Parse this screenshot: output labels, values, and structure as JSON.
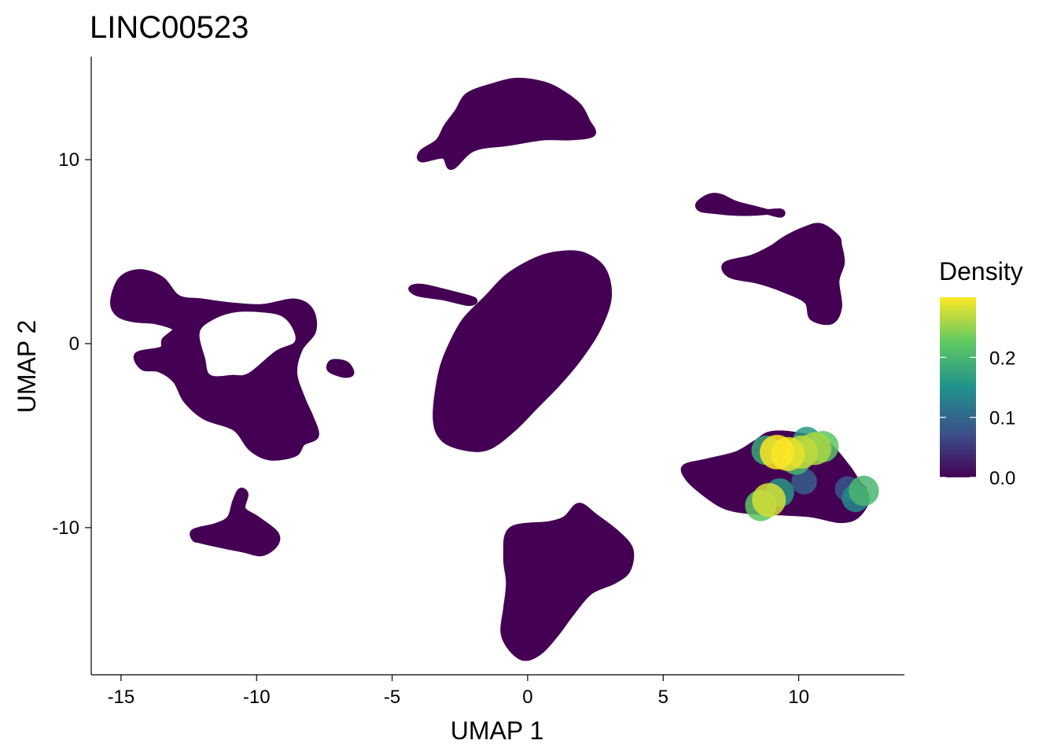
{
  "chart_data": {
    "type": "scatter",
    "title": "LINC00523",
    "xlabel": "UMAP 1",
    "ylabel": "UMAP 2",
    "xlim": [
      -16.1,
      13.9
    ],
    "ylim": [
      -18.0,
      15.6
    ],
    "x_ticks": [
      -15,
      -10,
      -5,
      0,
      5,
      10
    ],
    "x_tick_labels": [
      "-15",
      "-10",
      "-5",
      "0",
      "5",
      "10"
    ],
    "y_ticks": [
      -10,
      0,
      10
    ],
    "y_tick_labels": [
      "-10",
      "0",
      "10"
    ],
    "grid": false,
    "legend": {
      "title": "Density",
      "placement": "right",
      "color_scale": "viridis",
      "range": [
        0.0,
        0.3
      ],
      "ticks": [
        0.0,
        0.1,
        0.2
      ],
      "tick_labels": [
        "0.0",
        "0.1",
        "0.2"
      ],
      "colors": [
        "#440154",
        "#3b528b",
        "#21918c",
        "#5ec962",
        "#fde725"
      ]
    },
    "base_color": "#440154",
    "clusters": [
      {
        "shape": [
          [
            -3.9,
            10.4
          ],
          [
            -3.3,
            11.0
          ],
          [
            -3.0,
            11.8
          ],
          [
            -2.6,
            12.6
          ],
          [
            -2.2,
            13.5
          ],
          [
            -1.3,
            14.0
          ],
          [
            -0.4,
            14.3
          ],
          [
            0.6,
            14.1
          ],
          [
            1.3,
            13.6
          ],
          [
            1.9,
            12.9
          ],
          [
            2.2,
            12.1
          ],
          [
            2.4,
            11.4
          ],
          [
            1.6,
            11.2
          ],
          [
            0.6,
            11.2
          ],
          [
            -0.7,
            10.9
          ],
          [
            -2.0,
            10.6
          ],
          [
            -2.8,
            9.6
          ],
          [
            -3.1,
            10.2
          ],
          [
            -3.9,
            10.0
          ]
        ]
      },
      {
        "shape": [
          [
            6.3,
            7.6
          ],
          [
            6.7,
            8.0
          ],
          [
            7.1,
            8.0
          ],
          [
            7.7,
            7.6
          ],
          [
            8.5,
            7.3
          ],
          [
            9.3,
            7.0
          ],
          [
            9.3,
            7.2
          ],
          [
            8.4,
            7.1
          ],
          [
            7.6,
            7.1
          ],
          [
            6.9,
            7.2
          ],
          [
            6.4,
            7.3
          ]
        ]
      },
      {
        "shape": [
          [
            7.3,
            4.3
          ],
          [
            8.3,
            4.7
          ],
          [
            9.0,
            5.2
          ],
          [
            9.5,
            5.7
          ],
          [
            10.2,
            6.2
          ],
          [
            10.8,
            6.4
          ],
          [
            11.4,
            5.8
          ],
          [
            11.5,
            5.3
          ],
          [
            11.6,
            4.4
          ],
          [
            11.4,
            3.4
          ],
          [
            11.5,
            2.0
          ],
          [
            11.2,
            1.2
          ],
          [
            10.5,
            1.4
          ],
          [
            10.3,
            2.3
          ],
          [
            9.5,
            2.9
          ],
          [
            8.5,
            3.4
          ],
          [
            7.5,
            3.7
          ]
        ]
      },
      {
        "shape": [
          [
            -4.3,
            3.0
          ],
          [
            -4.0,
            2.7
          ],
          [
            -3.1,
            2.5
          ],
          [
            -2.2,
            2.2
          ],
          [
            -2.0,
            2.4
          ],
          [
            -3.0,
            2.8
          ],
          [
            -3.9,
            3.1
          ]
        ]
      },
      {
        "shape": [
          [
            -3.4,
            -4.0
          ],
          [
            -3.2,
            -1.6
          ],
          [
            -2.8,
            0.0
          ],
          [
            -2.3,
            1.3
          ],
          [
            -1.5,
            2.5
          ],
          [
            -0.7,
            3.7
          ],
          [
            0.4,
            4.6
          ],
          [
            1.3,
            4.9
          ],
          [
            2.1,
            4.8
          ],
          [
            2.8,
            4.0
          ],
          [
            3.0,
            2.5
          ],
          [
            2.6,
            0.8
          ],
          [
            1.9,
            -0.8
          ],
          [
            1.1,
            -2.2
          ],
          [
            0.3,
            -3.4
          ],
          [
            -0.5,
            -4.6
          ],
          [
            -1.4,
            -5.6
          ],
          [
            -2.2,
            -5.7
          ],
          [
            -3.1,
            -5.2
          ]
        ]
      },
      {
        "shape": [
          [
            -15.3,
            2.3
          ],
          [
            -15.0,
            3.5
          ],
          [
            -14.3,
            3.9
          ],
          [
            -13.5,
            3.5
          ],
          [
            -12.9,
            2.5
          ],
          [
            -12.0,
            2.3
          ],
          [
            -11.0,
            2.1
          ],
          [
            -9.8,
            2.0
          ],
          [
            -8.6,
            2.3
          ],
          [
            -8.0,
            1.8
          ],
          [
            -7.9,
            0.7
          ],
          [
            -8.4,
            -0.3
          ],
          [
            -8.6,
            -1.6
          ],
          [
            -8.3,
            -3.0
          ],
          [
            -8.0,
            -4.0
          ],
          [
            -7.8,
            -5.0
          ],
          [
            -8.3,
            -5.4
          ],
          [
            -8.6,
            -6.0
          ],
          [
            -9.5,
            -6.2
          ],
          [
            -10.2,
            -5.7
          ],
          [
            -10.8,
            -4.6
          ],
          [
            -11.9,
            -4.0
          ],
          [
            -12.6,
            -3.1
          ],
          [
            -13.0,
            -2.0
          ],
          [
            -13.6,
            -1.4
          ],
          [
            -14.2,
            -1.3
          ],
          [
            -14.4,
            -0.6
          ],
          [
            -13.5,
            -0.3
          ],
          [
            -13.4,
            0.2
          ],
          [
            -13.0,
            0.8
          ],
          [
            -13.7,
            1.2
          ],
          [
            -14.5,
            1.3
          ],
          [
            -15.1,
            1.6
          ]
        ]
      },
      {
        "shape": [
          [
            -8.6,
            0.1
          ],
          [
            -9.3,
            -0.4
          ],
          [
            -10.3,
            -1.6
          ],
          [
            -10.9,
            -1.7
          ],
          [
            -11.7,
            -1.7
          ],
          [
            -11.9,
            -0.8
          ],
          [
            -12.1,
            0.6
          ],
          [
            -11.6,
            1.3
          ],
          [
            -10.8,
            1.7
          ],
          [
            -9.8,
            1.7
          ],
          [
            -9.1,
            1.5
          ],
          [
            -8.7,
            0.9
          ]
        ],
        "hole": true
      },
      {
        "shape": [
          [
            -7.2,
            -1.0
          ],
          [
            -6.7,
            -1.1
          ],
          [
            -6.5,
            -1.6
          ],
          [
            -6.8,
            -1.7
          ],
          [
            -7.3,
            -1.4
          ]
        ]
      },
      {
        "shape": [
          [
            -12.3,
            -10.6
          ],
          [
            -12.3,
            -10.2
          ],
          [
            -11.5,
            -9.9
          ],
          [
            -11.0,
            -9.5
          ],
          [
            -10.8,
            -8.6
          ],
          [
            -10.6,
            -8.0
          ],
          [
            -10.4,
            -8.2
          ],
          [
            -10.5,
            -9.0
          ],
          [
            -10.0,
            -9.5
          ],
          [
            -9.3,
            -10.3
          ],
          [
            -9.3,
            -10.9
          ],
          [
            -9.8,
            -11.4
          ],
          [
            -10.5,
            -11.2
          ],
          [
            -11.5,
            -10.9
          ],
          [
            -12.1,
            -10.7
          ]
        ]
      },
      {
        "shape": [
          [
            0.8,
            -9.8
          ],
          [
            1.4,
            -9.5
          ],
          [
            1.9,
            -8.8
          ],
          [
            2.5,
            -9.4
          ],
          [
            3.3,
            -10.3
          ],
          [
            3.8,
            -11.2
          ],
          [
            3.7,
            -12.3
          ],
          [
            3.2,
            -12.9
          ],
          [
            2.3,
            -13.5
          ],
          [
            1.6,
            -14.7
          ],
          [
            1.1,
            -15.7
          ],
          [
            0.5,
            -16.7
          ],
          [
            -0.1,
            -17.1
          ],
          [
            -0.6,
            -16.6
          ],
          [
            -0.9,
            -15.7
          ],
          [
            -0.8,
            -14.4
          ],
          [
            -0.7,
            -13.0
          ],
          [
            -0.8,
            -11.6
          ],
          [
            -0.6,
            -10.1
          ]
        ]
      },
      {
        "shape": [
          [
            5.8,
            -6.7
          ],
          [
            6.6,
            -6.4
          ],
          [
            7.7,
            -6.0
          ],
          [
            8.4,
            -5.4
          ],
          [
            9.0,
            -4.9
          ],
          [
            10.1,
            -5.0
          ],
          [
            11.0,
            -5.4
          ],
          [
            11.8,
            -6.7
          ],
          [
            12.2,
            -7.6
          ],
          [
            12.4,
            -7.9
          ],
          [
            12.5,
            -8.6
          ],
          [
            12.1,
            -9.4
          ],
          [
            11.5,
            -9.6
          ],
          [
            10.5,
            -9.3
          ],
          [
            9.5,
            -9.2
          ],
          [
            8.1,
            -9.1
          ],
          [
            7.2,
            -8.8
          ],
          [
            6.4,
            -8.0
          ],
          [
            5.9,
            -7.3
          ]
        ]
      }
    ],
    "hotspots": [
      {
        "x": 9.2,
        "y": -5.9,
        "density": 0.3
      },
      {
        "x": 9.6,
        "y": -6.0,
        "density": 0.29
      },
      {
        "x": 10.1,
        "y": -5.9,
        "density": 0.27
      },
      {
        "x": 10.6,
        "y": -5.7,
        "density": 0.26
      },
      {
        "x": 10.9,
        "y": -5.6,
        "density": 0.22
      },
      {
        "x": 8.8,
        "y": -5.8,
        "density": 0.18
      },
      {
        "x": 9.9,
        "y": -6.3,
        "density": 0.2
      },
      {
        "x": 10.3,
        "y": -5.3,
        "density": 0.16
      },
      {
        "x": 8.9,
        "y": -8.5,
        "density": 0.28
      },
      {
        "x": 8.6,
        "y": -8.8,
        "density": 0.22
      },
      {
        "x": 9.3,
        "y": -8.1,
        "density": 0.16
      },
      {
        "x": 10.2,
        "y": -7.5,
        "density": 0.09
      },
      {
        "x": 12.4,
        "y": -8.0,
        "density": 0.2
      },
      {
        "x": 12.1,
        "y": -8.4,
        "density": 0.14
      },
      {
        "x": 11.8,
        "y": -7.9,
        "density": 0.08
      }
    ]
  }
}
